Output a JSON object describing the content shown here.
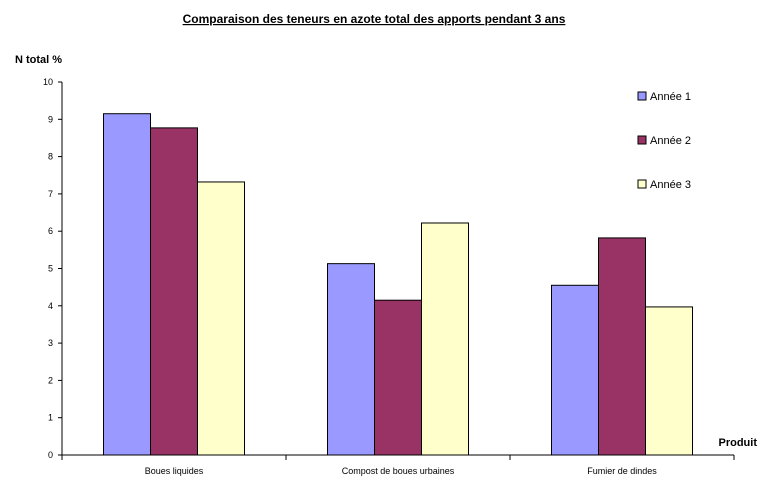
{
  "chart_data": {
    "type": "bar",
    "title": "Comparaison des teneurs en azote total des apports pendant 3 ans",
    "ylabel": "N total %",
    "xlabel": "Produit",
    "categories": [
      "Boues liquides",
      "Compost de boues urbaines",
      "Fumier de dindes"
    ],
    "series": [
      {
        "name": "Année 1",
        "values": [
          9.15,
          5.13,
          4.55
        ],
        "color": "#9999ff"
      },
      {
        "name": "Année 2",
        "values": [
          8.77,
          4.15,
          5.82
        ],
        "color": "#993366"
      },
      {
        "name": "Année 3",
        "values": [
          7.32,
          6.22,
          3.97
        ],
        "color": "#ffffcc"
      }
    ],
    "ylim": [
      0,
      10
    ],
    "yticks": [
      0,
      1,
      2,
      3,
      4,
      5,
      6,
      7,
      8,
      9,
      10
    ],
    "grid": false,
    "legend": "right"
  }
}
